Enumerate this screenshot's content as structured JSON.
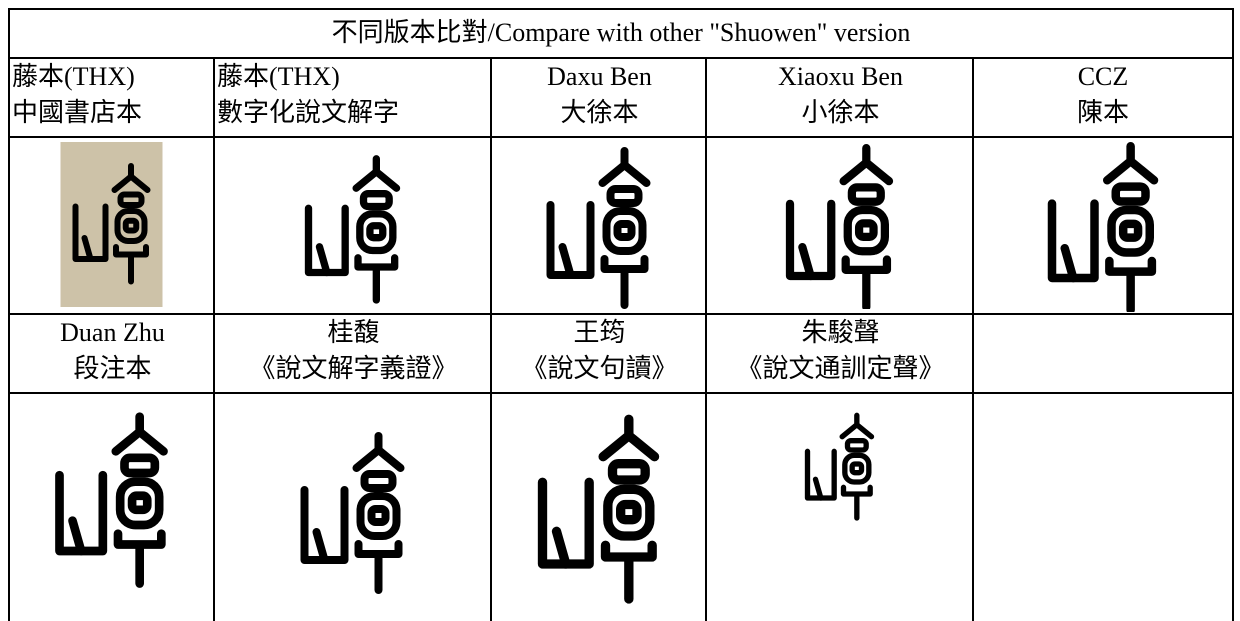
{
  "table": {
    "title": "不同版本比對/Compare with other \"Shuowen\" version",
    "label_rows": [
      [
        [
          "藤本(THX)",
          "中國書店本"
        ],
        [
          "藤本(THX)",
          "數字化說文解字"
        ],
        [
          "Daxu Ben",
          "大徐本"
        ],
        [
          "Xiaoxu Ben",
          "小徐本"
        ],
        [
          "CCZ",
          "陳本"
        ]
      ],
      [
        [
          "Duan Zhu",
          "段注本"
        ],
        [
          "桂馥",
          "《說文解字義證》"
        ],
        [
          "王筠",
          "《說文句讀》"
        ],
        [
          "朱駿聲",
          "《說文通訓定聲》"
        ]
      ]
    ]
  }
}
